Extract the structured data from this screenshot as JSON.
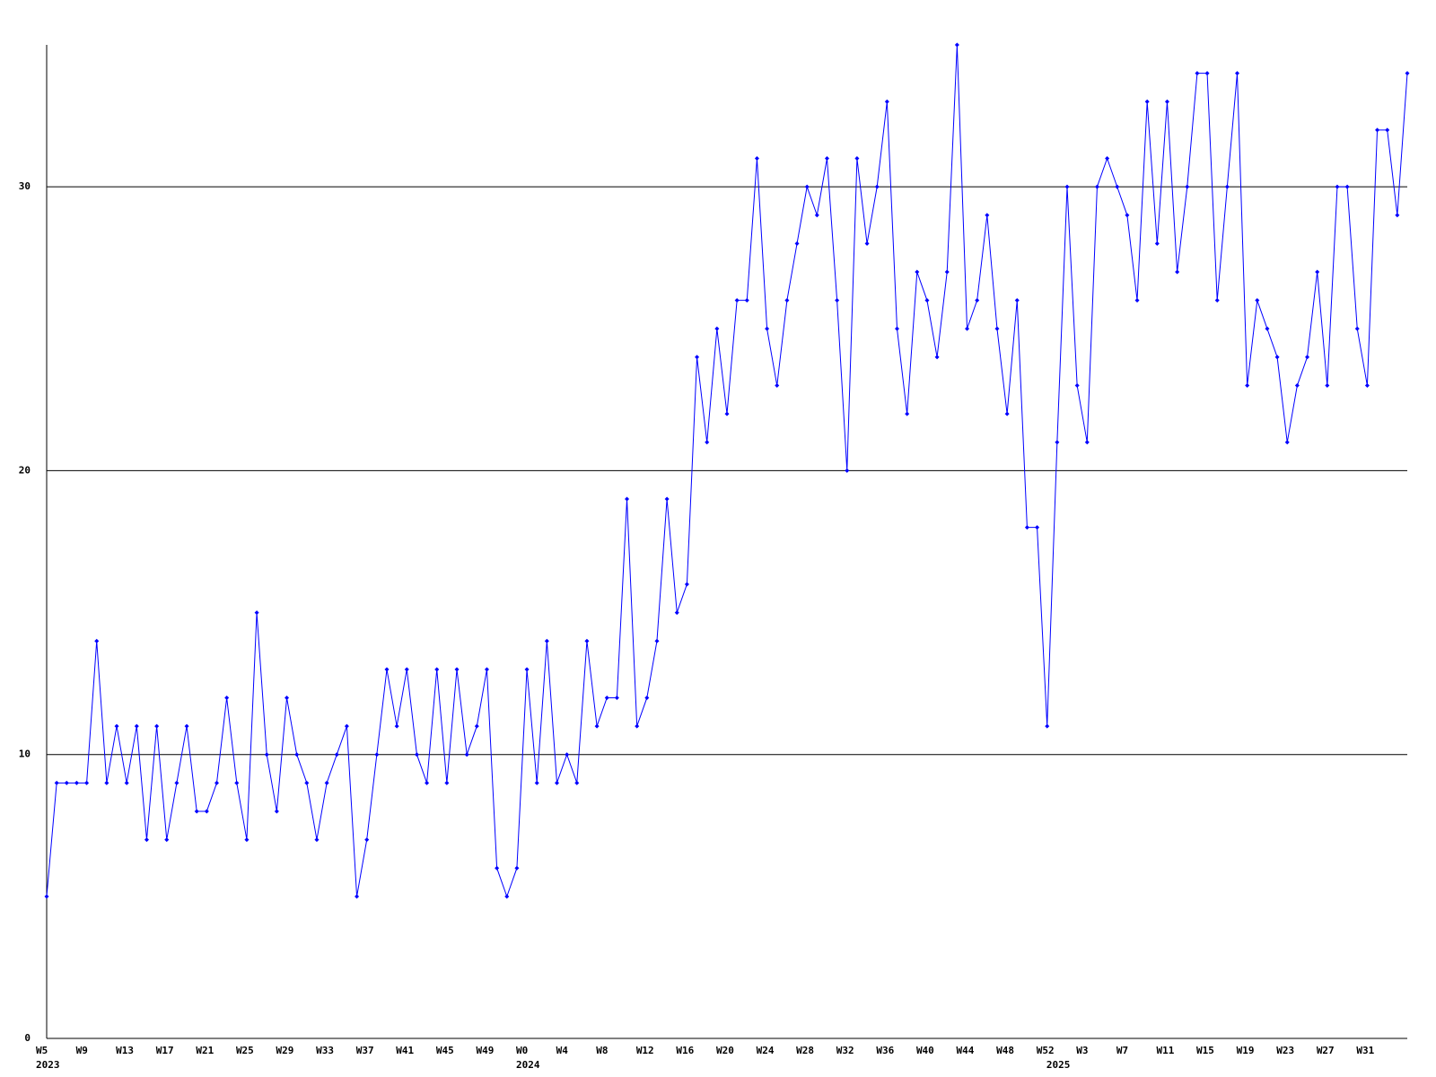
{
  "chart_data": {
    "type": "line",
    "color": "#0000ff",
    "grid": true,
    "ylim": [
      0,
      35
    ],
    "yticks": [
      0,
      10,
      20,
      30
    ],
    "categories": [
      "W5",
      null,
      null,
      null,
      "W9",
      null,
      null,
      null,
      "W13",
      null,
      null,
      null,
      "W17",
      null,
      null,
      null,
      "W21",
      null,
      null,
      null,
      "W25",
      null,
      null,
      null,
      "W29",
      null,
      null,
      null,
      "W33",
      null,
      null,
      null,
      "W37",
      null,
      null,
      null,
      "W41",
      null,
      null,
      null,
      "W45",
      null,
      null,
      null,
      "W49",
      null,
      null,
      null,
      "W0",
      null,
      null,
      null,
      "W4",
      null,
      null,
      null,
      "W8",
      null,
      null,
      null,
      "W12",
      null,
      null,
      null,
      "W16",
      null,
      null,
      null,
      "W20",
      null,
      null,
      null,
      "W24",
      null,
      null,
      null,
      "W28",
      null,
      null,
      null,
      "W32",
      null,
      null,
      null,
      "W36",
      null,
      null,
      null,
      "W40",
      null,
      null,
      null,
      "W44",
      null,
      null,
      null,
      "W48",
      null,
      null,
      null,
      "W52",
      null,
      null,
      null,
      "W3",
      null,
      null,
      null,
      "W7",
      null,
      null,
      null,
      "W11",
      null,
      null,
      null,
      "W15",
      null,
      null,
      null,
      "W19",
      null,
      null,
      null,
      "W23",
      null,
      null,
      null,
      "W27",
      null,
      null,
      null,
      "W31",
      null,
      null,
      null,
      null
    ],
    "category_years": [
      "2023",
      null,
      null,
      null,
      null,
      null,
      null,
      null,
      null,
      null,
      null,
      null,
      null,
      null,
      null,
      null,
      null,
      null,
      null,
      null,
      null,
      null,
      null,
      null,
      null,
      null,
      null,
      null,
      null,
      null,
      null,
      null,
      null,
      null,
      null,
      null,
      null,
      null,
      null,
      null,
      null,
      null,
      null,
      null,
      null,
      null,
      null,
      null,
      "2024",
      null,
      null,
      null,
      null,
      null,
      null,
      null,
      null,
      null,
      null,
      null,
      null,
      null,
      null,
      null,
      null,
      null,
      null,
      null,
      null,
      null,
      null,
      null,
      null,
      null,
      null,
      null,
      null,
      null,
      null,
      null,
      null,
      null,
      null,
      null,
      null,
      null,
      null,
      null,
      null,
      null,
      null,
      null,
      null,
      null,
      null,
      null,
      null,
      null,
      null,
      null,
      null,
      "2025",
      null,
      null,
      null,
      null,
      null,
      null,
      null,
      null,
      null,
      null,
      null,
      null,
      null,
      null,
      null,
      null,
      null,
      null,
      null,
      null,
      null,
      null,
      null,
      null,
      null,
      null,
      null,
      null,
      null,
      null,
      null,
      null,
      null,
      null
    ],
    "values": [
      5,
      9,
      9,
      9,
      9,
      14,
      9,
      11,
      9,
      11,
      7,
      11,
      7,
      9,
      11,
      8,
      8,
      9,
      12,
      9,
      7,
      15,
      10,
      8,
      12,
      10,
      9,
      7,
      9,
      10,
      11,
      5,
      7,
      10,
      13,
      11,
      13,
      10,
      9,
      13,
      9,
      13,
      10,
      11,
      13,
      6,
      5,
      6,
      13,
      9,
      14,
      9,
      10,
      9,
      14,
      11,
      12,
      12,
      19,
      11,
      12,
      14,
      19,
      15,
      16,
      24,
      21,
      25,
      22,
      26,
      26,
      31,
      25,
      23,
      26,
      28,
      30,
      29,
      31,
      26,
      20,
      31,
      28,
      30,
      33,
      25,
      22,
      27,
      26,
      24,
      27,
      35,
      25,
      26,
      29,
      25,
      22,
      26,
      18,
      18,
      11,
      21,
      30,
      23,
      21,
      30,
      31,
      30,
      29,
      26,
      33,
      28,
      33,
      27,
      30,
      34,
      34,
      26,
      30,
      34,
      23,
      26,
      25,
      24,
      21,
      23,
      24,
      27,
      23,
      30,
      30,
      25,
      23,
      32,
      32,
      29,
      34
    ]
  }
}
